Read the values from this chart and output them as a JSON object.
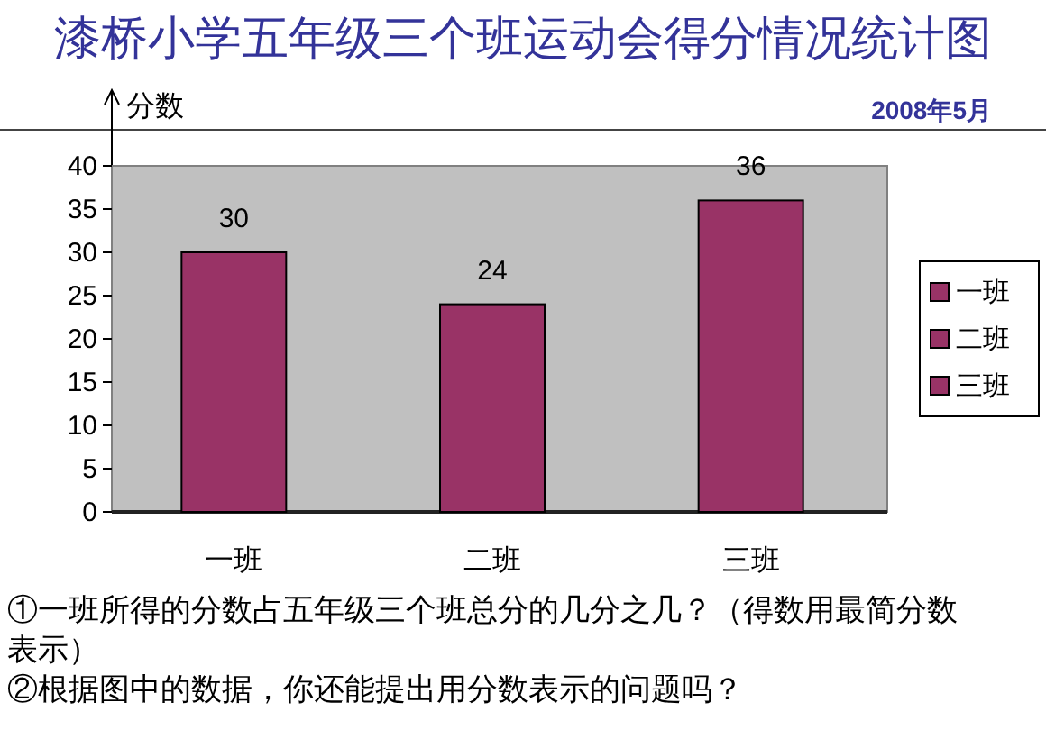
{
  "chart_data": {
    "type": "bar",
    "title": "漆桥小学五年级三个班运动会得分情况统计图",
    "subtitle": "2008年5月",
    "ylabel": "分数",
    "categories": [
      "一班",
      "二班",
      "三班"
    ],
    "stacked": true,
    "series": [
      {
        "name": "一班",
        "color": "#993366",
        "values": [
          30,
          null,
          null
        ]
      },
      {
        "name": "二班",
        "color": "#993366",
        "values": [
          null,
          24,
          null
        ]
      },
      {
        "name": "三班",
        "color": "#993366",
        "values": [
          null,
          null,
          36
        ]
      }
    ],
    "ylim": [
      0,
      40
    ],
    "yticks": [
      0,
      5,
      10,
      15,
      20,
      25,
      30,
      35,
      40
    ],
    "data_labels": true,
    "legend": "right",
    "grid": false,
    "annotations": [
      "①一班所得的分数占五年级三个班总分的几分之几？（得数用最简分数表示）",
      "②根据图中的数据，你还能提出用分数表示的问题吗？"
    ]
  }
}
